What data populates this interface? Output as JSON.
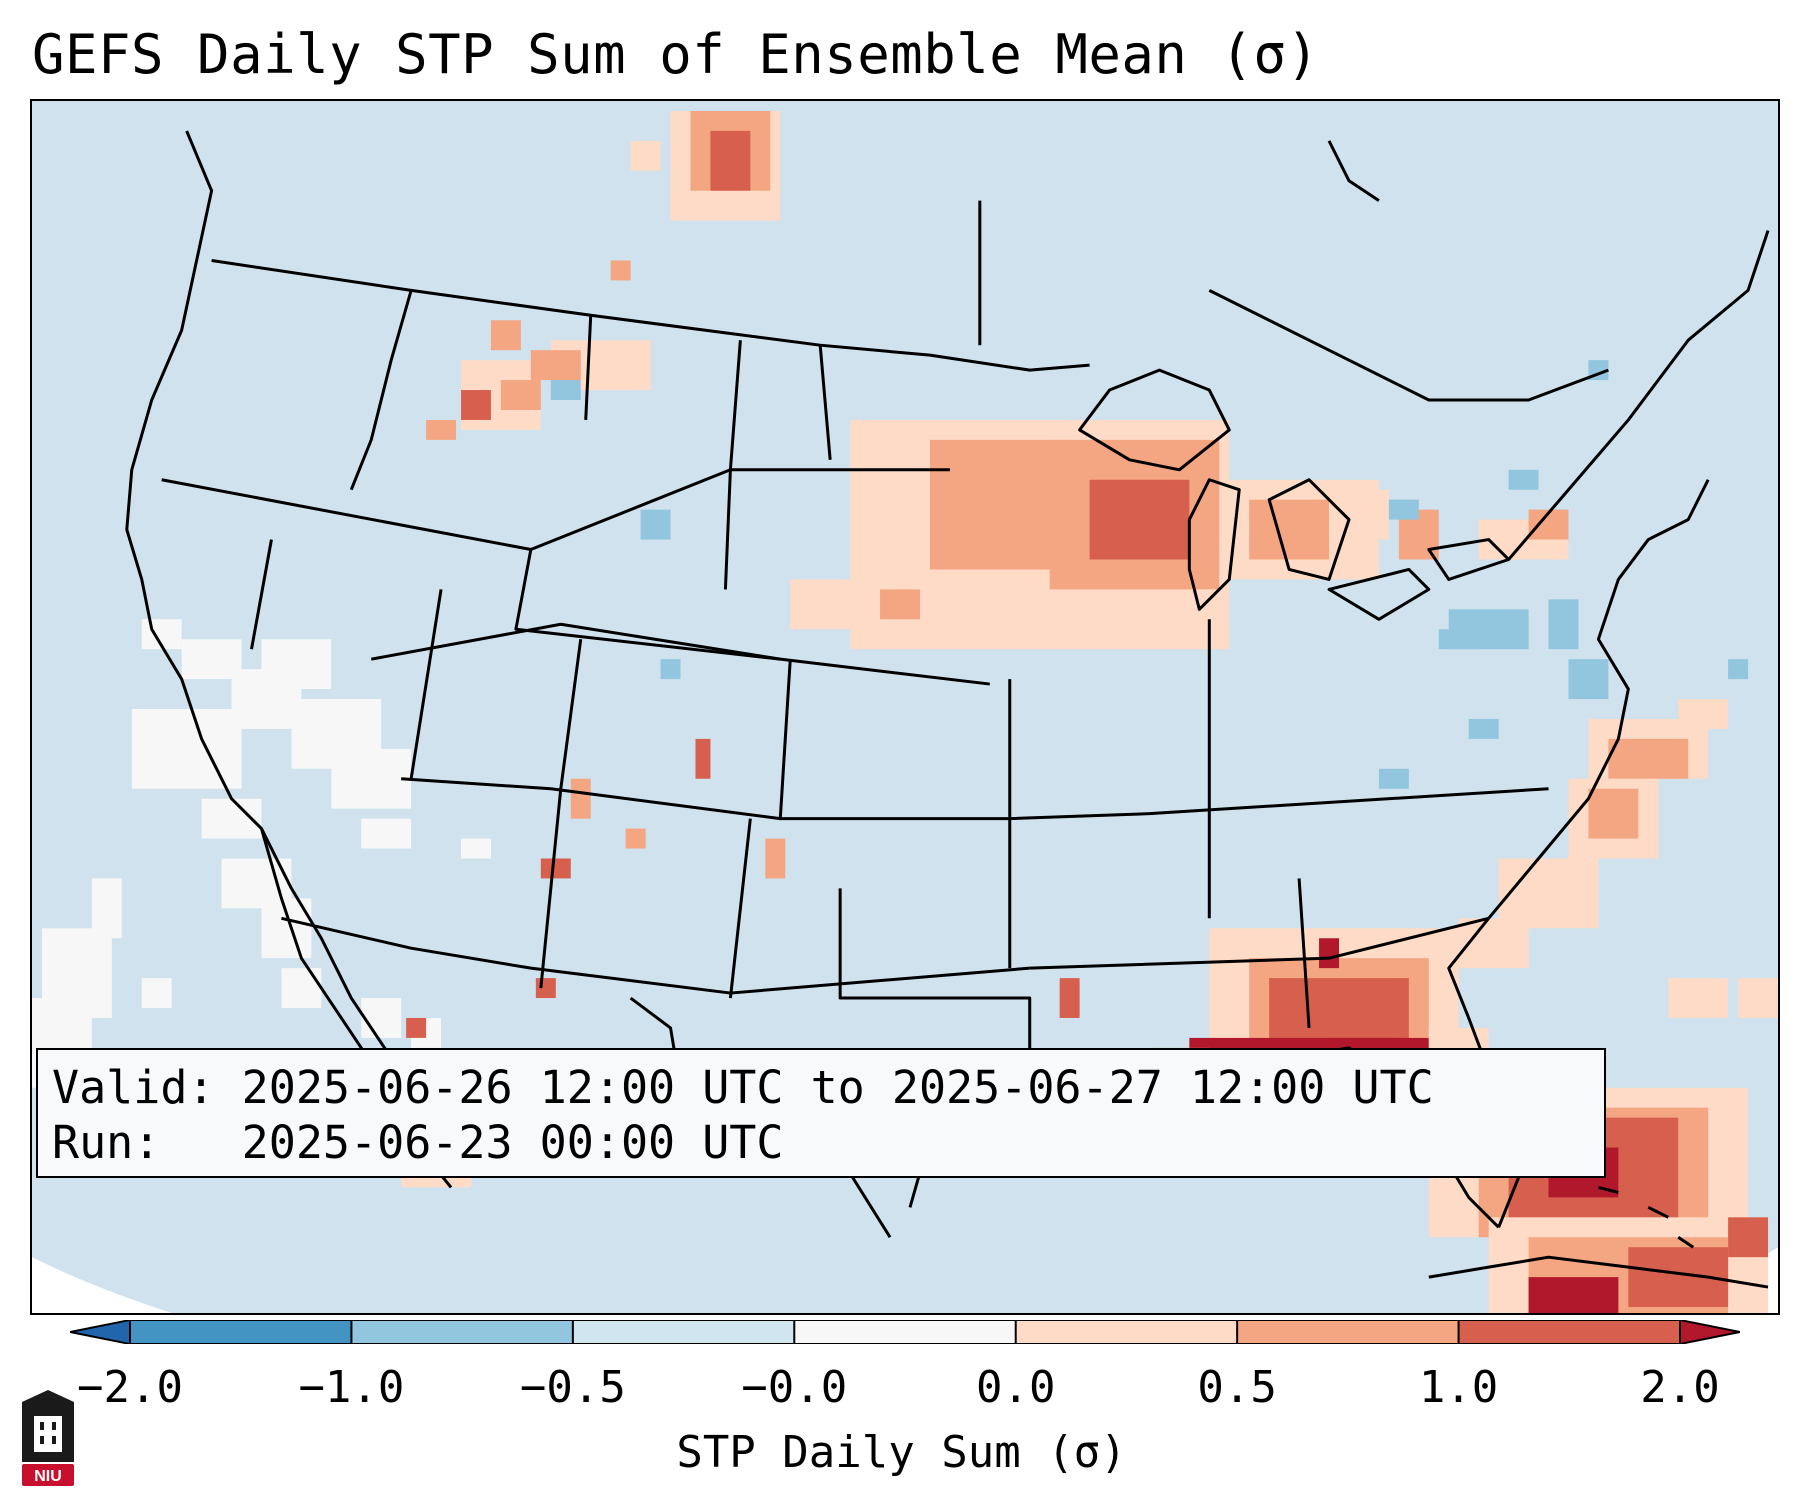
{
  "title": "GEFS Daily STP Sum of Ensemble Mean (σ)",
  "info": {
    "valid_line": "Valid: 2025-06-26 12:00 UTC to 2025-06-27 12:00 UTC",
    "run_line": "Run:   2025-06-23 00:00 UTC"
  },
  "colorbar": {
    "label": "STP Daily Sum (σ)",
    "ticks": [
      "−2.0",
      "−1.0",
      "−0.5",
      "−0.0",
      "0.0",
      "0.5",
      "1.0",
      "2.0"
    ],
    "colors": {
      "below_min": "#2166ac",
      "bin_m2_m1": "#4393c3",
      "bin_m1_m05": "#92c5de",
      "bin_m05_0": "#d1e5f0",
      "bin_0": "#f7f7f7",
      "bin_0_05": "#fddbc7",
      "bin_05_1": "#f4a582",
      "bin_1_2": "#d6604d",
      "above_max": "#b2182b"
    }
  },
  "map": {
    "projection": "Lambert Conformal CONUS",
    "background_color": "#d1e5f0",
    "anomaly_regions": [
      "Upper Midwest (Minnesota, Wisconsin, Michigan): 0.5 to 1.0",
      "Northern Gulf Coast (Alabama, Florida Panhandle): above 2.0",
      "Florida Peninsula and Bahamas: 1.0 to 2.0",
      "Montana and North Dakota border: 0.5 to 1.0",
      "Southern California and Baja: 0.0 (white)"
    ]
  },
  "logo": {
    "icon": "university-shield-icon",
    "text": "NIU",
    "color": "#c8102e"
  }
}
